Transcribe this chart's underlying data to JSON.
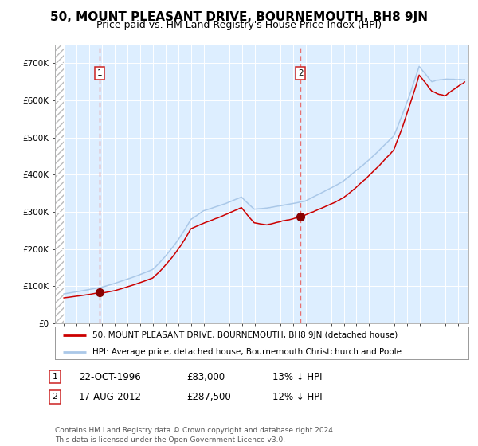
{
  "title": "50, MOUNT PLEASANT DRIVE, BOURNEMOUTH, BH8 9JN",
  "subtitle": "Price paid vs. HM Land Registry's House Price Index (HPI)",
  "legend_label_red": "50, MOUNT PLEASANT DRIVE, BOURNEMOUTH, BH8 9JN (detached house)",
  "legend_label_blue": "HPI: Average price, detached house, Bournemouth Christchurch and Poole",
  "table_row1": [
    "1",
    "22-OCT-1996",
    "£83,000",
    "13% ↓ HPI"
  ],
  "table_row2": [
    "2",
    "17-AUG-2012",
    "£287,500",
    "12% ↓ HPI"
  ],
  "footnote": "Contains HM Land Registry data © Crown copyright and database right 2024.\nThis data is licensed under the Open Government Licence v3.0.",
  "purchase_year1": 1996.8,
  "purchase_price1": 83000,
  "purchase_year2": 2012.6,
  "purchase_price2": 287500,
  "hpi_color": "#aac8e8",
  "price_color": "#cc0000",
  "vline_color": "#e87070",
  "marker_color": "#880000",
  "bg_color": "#ddeeff",
  "hatch_color": "#bbbbbb",
  "grid_color": "#ffffff",
  "ylim": [
    0,
    750000
  ],
  "yticks": [
    0,
    100000,
    200000,
    300000,
    400000,
    500000,
    600000,
    700000
  ],
  "title_fontsize": 11,
  "subtitle_fontsize": 9,
  "axis_fontsize": 7.5,
  "legend_fontsize": 8
}
